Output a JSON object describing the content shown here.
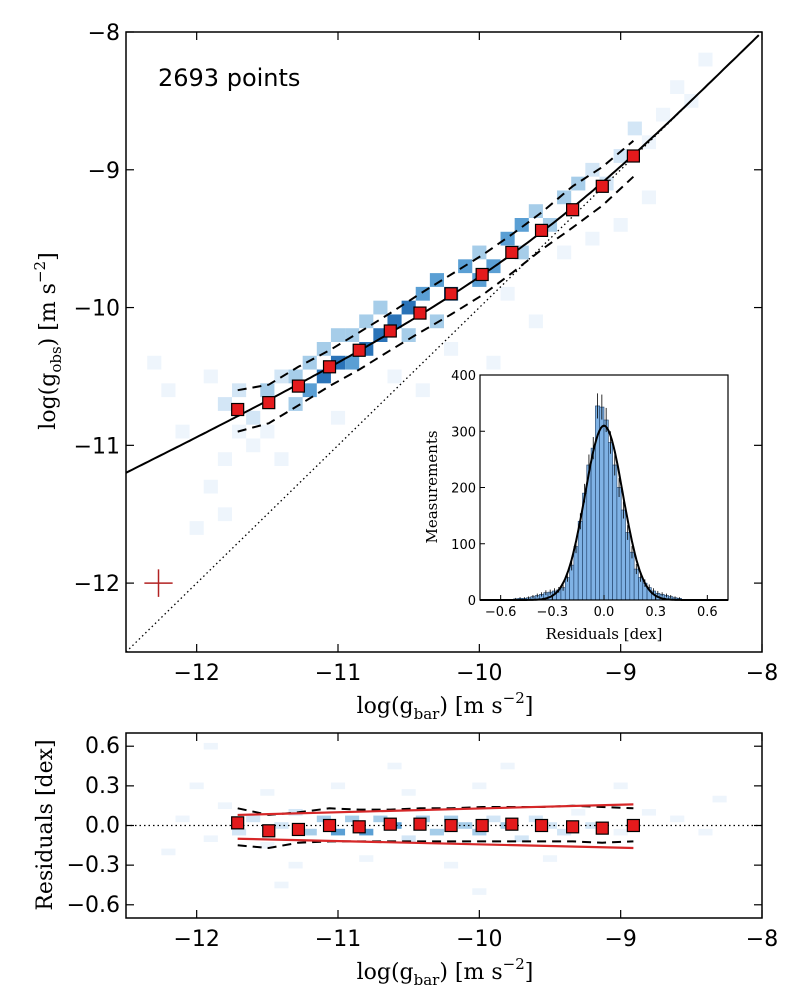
{
  "chart_data": [
    {
      "name": "main",
      "type": "scatter",
      "annotation": "2693 points",
      "xlabel": "log(g",
      "xlabel_sub": "bar",
      "xlabel_unit": ") [m s",
      "xlabel_exp": "−2",
      "xlabel_end": "]",
      "ylabel": "log(g",
      "ylabel_sub": "obs",
      "ylabel_unit": ") [m s",
      "ylabel_exp": "−2",
      "ylabel_end": "]",
      "xlim": [
        -12.5,
        -8
      ],
      "ylim": [
        -12.5,
        -8
      ],
      "xticks": [
        -12,
        -11,
        -10,
        -9,
        -8
      ],
      "xtick_labels": [
        "−12",
        "−11",
        "−10",
        "−9",
        "−8"
      ],
      "yticks": [
        -12,
        -11,
        -10,
        -9,
        -8
      ],
      "ytick_labels": [
        "−12",
        "−11",
        "−10",
        "−9",
        "−8"
      ],
      "binned_points": {
        "x": [
          -11.71,
          -11.49,
          -11.28,
          -11.06,
          -10.85,
          -10.63,
          -10.42,
          -10.2,
          -9.98,
          -9.77,
          -9.56,
          -9.34,
          -9.13,
          -8.91
        ],
        "y": [
          -10.74,
          -10.69,
          -10.57,
          -10.43,
          -10.31,
          -10.17,
          -10.04,
          -9.9,
          -9.76,
          -9.6,
          -9.44,
          -9.29,
          -9.12,
          -8.9
        ]
      },
      "scatter_band_upper": {
        "x": [
          -11.71,
          -11.49,
          -11.28,
          -11.06,
          -10.85,
          -10.63,
          -10.42,
          -10.2,
          -9.98,
          -9.77,
          -9.56,
          -9.34,
          -9.13,
          -8.91
        ],
        "y": [
          -10.6,
          -10.56,
          -10.43,
          -10.31,
          -10.18,
          -10.04,
          -9.9,
          -9.76,
          -9.62,
          -9.47,
          -9.31,
          -9.12,
          -8.98,
          -8.79
        ]
      },
      "scatter_band_lower": {
        "x": [
          -11.71,
          -11.49,
          -11.28,
          -11.06,
          -10.85,
          -10.63,
          -10.42,
          -10.2,
          -9.98,
          -9.77,
          -9.56,
          -9.34,
          -9.13,
          -8.91
        ],
        "y": [
          -10.9,
          -10.84,
          -10.71,
          -10.57,
          -10.45,
          -10.31,
          -10.18,
          -10.05,
          -9.91,
          -9.75,
          -9.58,
          -9.42,
          -9.26,
          -9.05
        ]
      },
      "typical_error": {
        "x": -12.27,
        "y": -12.0,
        "xerr": 0.1,
        "yerr": 0.1
      },
      "heatmap_cells": [
        [
          -12.3,
          -10.4,
          1
        ],
        [
          -12.2,
          -10.6,
          1
        ],
        [
          -12.1,
          -10.9,
          1
        ],
        [
          -11.9,
          -11.3,
          1
        ],
        [
          -11.8,
          -11.1,
          1
        ],
        [
          -11.7,
          -10.9,
          1
        ],
        [
          -11.9,
          -10.5,
          1
        ],
        [
          -11.8,
          -10.7,
          2
        ],
        [
          -11.7,
          -10.6,
          2
        ],
        [
          -11.6,
          -10.8,
          2
        ],
        [
          -11.5,
          -10.9,
          1
        ],
        [
          -11.5,
          -10.6,
          3
        ],
        [
          -11.4,
          -10.5,
          2
        ],
        [
          -11.3,
          -10.7,
          3
        ],
        [
          -11.3,
          -10.5,
          3
        ],
        [
          -11.2,
          -10.6,
          4
        ],
        [
          -11.2,
          -10.4,
          3
        ],
        [
          -11.1,
          -10.5,
          5
        ],
        [
          -11.1,
          -10.3,
          3
        ],
        [
          -11.0,
          -10.4,
          5
        ],
        [
          -11.0,
          -10.2,
          3
        ],
        [
          -10.9,
          -10.4,
          4
        ],
        [
          -10.9,
          -10.2,
          3
        ],
        [
          -10.8,
          -10.3,
          5
        ],
        [
          -10.8,
          -10.1,
          3
        ],
        [
          -10.7,
          -10.2,
          5
        ],
        [
          -10.7,
          -10.0,
          3
        ],
        [
          -10.6,
          -10.1,
          5
        ],
        [
          -10.5,
          -10.2,
          3
        ],
        [
          -10.5,
          -10.0,
          5
        ],
        [
          -10.4,
          -9.9,
          4
        ],
        [
          -10.3,
          -10.1,
          3
        ],
        [
          -10.3,
          -9.8,
          4
        ],
        [
          -10.2,
          -9.9,
          5
        ],
        [
          -10.1,
          -9.7,
          4
        ],
        [
          -10.0,
          -9.8,
          4
        ],
        [
          -10.0,
          -9.6,
          3
        ],
        [
          -9.9,
          -9.7,
          4
        ],
        [
          -9.8,
          -9.5,
          4
        ],
        [
          -9.7,
          -9.6,
          3
        ],
        [
          -9.7,
          -9.4,
          4
        ],
        [
          -9.6,
          -9.3,
          3
        ],
        [
          -9.5,
          -9.4,
          3
        ],
        [
          -9.4,
          -9.2,
          3
        ],
        [
          -9.3,
          -9.1,
          3
        ],
        [
          -9.2,
          -9.0,
          2
        ],
        [
          -9.1,
          -9.1,
          2
        ],
        [
          -9.0,
          -8.9,
          2
        ],
        [
          -8.9,
          -8.7,
          2
        ],
        [
          -8.8,
          -8.8,
          1
        ],
        [
          -8.7,
          -8.6,
          1
        ],
        [
          -8.6,
          -8.4,
          1
        ],
        [
          -8.5,
          -8.5,
          1
        ],
        [
          -8.4,
          -8.2,
          1
        ],
        [
          -11.6,
          -11.0,
          1
        ],
        [
          -11.4,
          -11.1,
          1
        ],
        [
          -11.0,
          -10.8,
          1
        ],
        [
          -10.6,
          -10.5,
          1
        ],
        [
          -10.2,
          -10.3,
          1
        ],
        [
          -9.8,
          -9.9,
          1
        ],
        [
          -9.4,
          -9.6,
          1
        ],
        [
          -9.0,
          -9.4,
          1
        ],
        [
          -8.8,
          -9.2,
          1
        ],
        [
          -9.2,
          -9.5,
          1
        ],
        [
          -10.4,
          -10.6,
          1
        ],
        [
          -12.0,
          -11.6,
          1
        ],
        [
          -11.8,
          -11.5,
          1
        ],
        [
          -9.9,
          -10.4,
          1
        ],
        [
          -9.6,
          -10.1,
          1
        ],
        [
          -9.0,
          -10.6,
          1
        ]
      ]
    },
    {
      "name": "inset",
      "type": "bar",
      "xlabel": "Residuals [dex]",
      "ylabel": "Measurements",
      "xlim": [
        -0.72,
        0.72
      ],
      "ylim": [
        0,
        400
      ],
      "xticks": [
        -0.6,
        -0.3,
        0.0,
        0.3,
        0.6
      ],
      "xtick_labels": [
        "−0.6",
        "−0.3",
        "0.0",
        "0.3",
        "0.6"
      ],
      "yticks": [
        0,
        100,
        200,
        300,
        400
      ],
      "ytick_labels": [
        "0",
        "100",
        "200",
        "300",
        "400"
      ],
      "bin_width": 0.025,
      "bin_centers": [
        -0.5125,
        -0.4875,
        -0.4625,
        -0.4375,
        -0.4125,
        -0.3875,
        -0.3625,
        -0.3375,
        -0.3125,
        -0.2875,
        -0.2625,
        -0.2375,
        -0.2125,
        -0.1875,
        -0.1625,
        -0.1375,
        -0.1125,
        -0.0875,
        -0.0625,
        -0.0375,
        -0.0125,
        0.0125,
        0.0375,
        0.0625,
        0.0875,
        0.1125,
        0.1375,
        0.1625,
        0.1875,
        0.2125,
        0.2375,
        0.2625,
        0.2875,
        0.3125,
        0.3375,
        0.3625,
        0.3875,
        0.4125,
        0.4375
      ],
      "counts": [
        2,
        3,
        3,
        4,
        6,
        8,
        10,
        13,
        14,
        16,
        18,
        22,
        40,
        62,
        95,
        140,
        190,
        240,
        270,
        345,
        343,
        320,
        280,
        240,
        200,
        160,
        120,
        85,
        55,
        40,
        30,
        22,
        16,
        12,
        10,
        8,
        6,
        4,
        3
      ],
      "gaussian_fit": {
        "mean": 0.0,
        "sigma": 0.11,
        "peak": 310
      }
    },
    {
      "name": "residuals",
      "type": "scatter",
      "xlabel": "log(g",
      "xlabel_sub": "bar",
      "xlabel_unit": ") [m s",
      "xlabel_exp": "−2",
      "xlabel_end": "]",
      "ylabel": "Residuals [dex]",
      "xlim": [
        -12.5,
        -8
      ],
      "ylim": [
        -0.7,
        0.7
      ],
      "xticks": [
        -12,
        -11,
        -10,
        -9,
        -8
      ],
      "xtick_labels": [
        "−12",
        "−11",
        "−10",
        "−9",
        "−8"
      ],
      "yticks": [
        0.6,
        0.3,
        0.0,
        -0.3,
        -0.6
      ],
      "ytick_labels": [
        "0.6",
        "0.3",
        "0.0",
        "−0.3",
        "−0.6"
      ],
      "binned_points": {
        "x": [
          -11.71,
          -11.49,
          -11.28,
          -11.06,
          -10.85,
          -10.63,
          -10.42,
          -10.2,
          -9.98,
          -9.77,
          -9.56,
          -9.34,
          -9.13,
          -8.91
        ],
        "y": [
          0.02,
          -0.04,
          -0.03,
          0.0,
          -0.01,
          0.01,
          0.01,
          0.0,
          0.0,
          0.01,
          0.0,
          -0.01,
          -0.02,
          0.0
        ]
      },
      "dashed_upper": {
        "x": [
          -11.71,
          -11.49,
          -11.28,
          -11.06,
          -10.85,
          -10.63,
          -10.42,
          -10.2,
          -9.98,
          -9.77,
          -9.56,
          -9.34,
          -9.13,
          -8.91
        ],
        "y": [
          0.13,
          0.08,
          0.1,
          0.13,
          0.12,
          0.12,
          0.13,
          0.13,
          0.14,
          0.14,
          0.14,
          0.15,
          0.14,
          0.13
        ]
      },
      "dashed_lower": {
        "x": [
          -11.71,
          -11.49,
          -11.28,
          -11.06,
          -10.85,
          -10.63,
          -10.42,
          -10.2,
          -9.98,
          -9.77,
          -9.56,
          -9.34,
          -9.13,
          -8.91
        ],
        "y": [
          -0.15,
          -0.17,
          -0.13,
          -0.12,
          -0.12,
          -0.12,
          -0.12,
          -0.12,
          -0.12,
          -0.12,
          -0.12,
          -0.12,
          -0.13,
          -0.12
        ]
      },
      "red_upper": {
        "x": [
          -11.71,
          -8.91
        ],
        "y": [
          0.08,
          0.16
        ]
      },
      "red_lower": {
        "x": [
          -11.71,
          -8.91
        ],
        "y": [
          -0.1,
          -0.17
        ]
      },
      "heatmap_cells": [
        [
          -12.1,
          0.05,
          1
        ],
        [
          -11.9,
          -0.1,
          1
        ],
        [
          -11.8,
          0.15,
          1
        ],
        [
          -11.7,
          -0.05,
          2
        ],
        [
          -11.6,
          0.05,
          2
        ],
        [
          -11.5,
          -0.15,
          1
        ],
        [
          -11.4,
          0.0,
          2
        ],
        [
          -11.3,
          0.1,
          2
        ],
        [
          -11.2,
          -0.05,
          3
        ],
        [
          -11.1,
          0.05,
          3
        ],
        [
          -11.0,
          -0.05,
          4
        ],
        [
          -10.9,
          0.05,
          3
        ],
        [
          -10.8,
          -0.05,
          4
        ],
        [
          -10.7,
          0.05,
          3
        ],
        [
          -10.6,
          0.0,
          4
        ],
        [
          -10.5,
          -0.1,
          2
        ],
        [
          -10.4,
          0.05,
          3
        ],
        [
          -10.3,
          -0.05,
          3
        ],
        [
          -10.2,
          0.05,
          3
        ],
        [
          -10.1,
          0.0,
          3
        ],
        [
          -10.0,
          -0.05,
          3
        ],
        [
          -9.9,
          0.05,
          2
        ],
        [
          -9.8,
          0.0,
          3
        ],
        [
          -9.7,
          -0.1,
          2
        ],
        [
          -9.6,
          0.05,
          2
        ],
        [
          -9.5,
          0.0,
          2
        ],
        [
          -9.4,
          -0.05,
          2
        ],
        [
          -9.3,
          0.1,
          1
        ],
        [
          -9.2,
          0.0,
          2
        ],
        [
          -9.0,
          -0.05,
          1
        ],
        [
          -8.8,
          0.1,
          1
        ],
        [
          -8.6,
          0.05,
          1
        ],
        [
          -8.4,
          -0.05,
          1
        ],
        [
          -8.3,
          0.2,
          1
        ],
        [
          -11.5,
          0.25,
          1
        ],
        [
          -11.0,
          0.3,
          1
        ],
        [
          -10.5,
          0.25,
          1
        ],
        [
          -10.0,
          0.3,
          1
        ],
        [
          -11.3,
          -0.3,
          1
        ],
        [
          -10.8,
          -0.25,
          1
        ],
        [
          -10.2,
          -0.3,
          1
        ],
        [
          -9.5,
          -0.25,
          1
        ],
        [
          -12.0,
          0.3,
          1
        ],
        [
          -12.2,
          -0.2,
          1
        ],
        [
          -9.0,
          0.3,
          1
        ],
        [
          -11.9,
          0.6,
          1
        ],
        [
          -10.6,
          0.45,
          1
        ],
        [
          -9.8,
          0.45,
          1
        ],
        [
          -11.4,
          -0.45,
          1
        ],
        [
          -10.0,
          -0.5,
          1
        ]
      ]
    }
  ],
  "colors": {
    "marker_fill": "#e41a1c",
    "red_line": "#d62728",
    "error_cross": "#b22222",
    "hist_bar": "#7fb2e5",
    "heat": [
      "#eef5fc",
      "#d3e6f6",
      "#a6cde9",
      "#5a9fd4",
      "#2a73b8"
    ]
  }
}
